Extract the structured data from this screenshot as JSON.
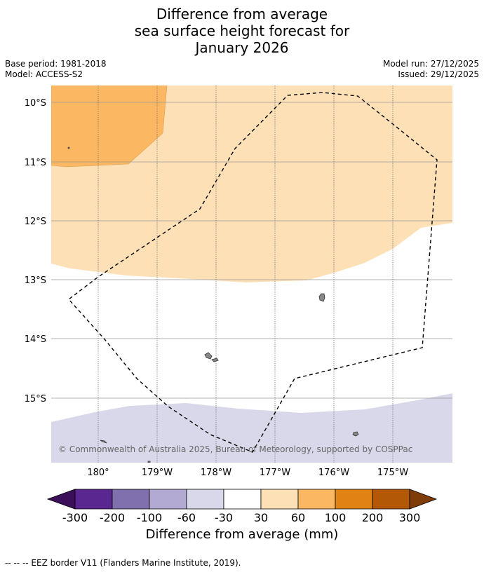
{
  "title": {
    "line1": "Difference from average",
    "line2": "sea surface height forecast for",
    "line3": "January 2026"
  },
  "meta": {
    "base_period": "Base period: 1981-2018",
    "model": "Model: ACCESS-S2",
    "model_run": "Model run: 27/12/2025",
    "issued": "Issued: 29/12/2025"
  },
  "map": {
    "lat_labels": [
      "10°S",
      "11°S",
      "12°S",
      "13°S",
      "14°S",
      "15°S"
    ],
    "lon_labels": [
      "180°",
      "179°W",
      "178°W",
      "177°W",
      "176°W",
      "175°W"
    ],
    "copyright": "© Commonwealth of Australia 2025, Bureau of Meteorology, supported by COSPPac",
    "colors": {
      "ocean_neutral": "#ffffff",
      "band_30_60": "#fde0b6",
      "band_60_100": "#fbb762",
      "band_neg30_neg60": "#d8d8ea",
      "land": "#888888",
      "eez_line": "#000000"
    }
  },
  "colorbar": {
    "ticks": [
      "-300",
      "-200",
      "-100",
      "-60",
      "-30",
      "30",
      "60",
      "100",
      "200",
      "300"
    ],
    "colors": [
      "#3b0f5a",
      "#5a2690",
      "#8070ad",
      "#b2aad2",
      "#d8d8ea",
      "#ffffff",
      "#fde0b6",
      "#fbb762",
      "#e08214",
      "#b35806",
      "#7f3b08"
    ],
    "label": "Difference from average (mm)"
  },
  "footnote": "--  --  -- EEZ border V11 (Flanders Marine Institute, 2019)."
}
